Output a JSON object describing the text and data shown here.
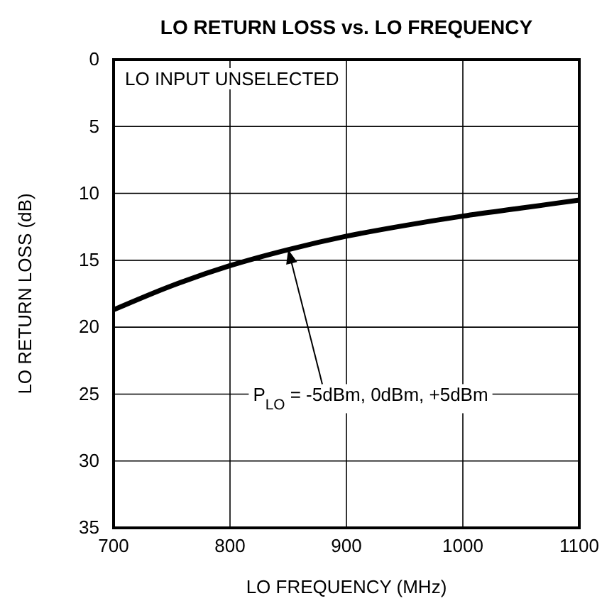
{
  "chart_data": {
    "type": "line",
    "title": "LO RETURN LOSS vs. LO FREQUENCY",
    "xlabel": "LO FREQUENCY (MHz)",
    "ylabel": "LO RETURN LOSS (dB)",
    "x": [
      700,
      750,
      800,
      850,
      900,
      950,
      1000,
      1050,
      1100
    ],
    "series": [
      {
        "color": "#000000",
        "values": [
          18.7,
          16.9,
          15.4,
          14.2,
          13.2,
          12.4,
          11.7,
          11.1,
          10.5
        ]
      }
    ],
    "xlim": [
      700,
      1100
    ],
    "xticks": [
      700,
      800,
      900,
      1000,
      1100
    ],
    "ylim": [
      35,
      0
    ],
    "yticks": [
      0,
      5,
      10,
      15,
      20,
      25,
      30,
      35
    ],
    "grid": true,
    "marker": "none",
    "line_style": "solid",
    "annotations": [
      "LO INPUT UNSELECTED",
      {
        "text": "P$_{LO}$ = -5dBm, 0dBm, +5dBm",
        "x": 850,
        "y": 14.2
      }
    ]
  }
}
